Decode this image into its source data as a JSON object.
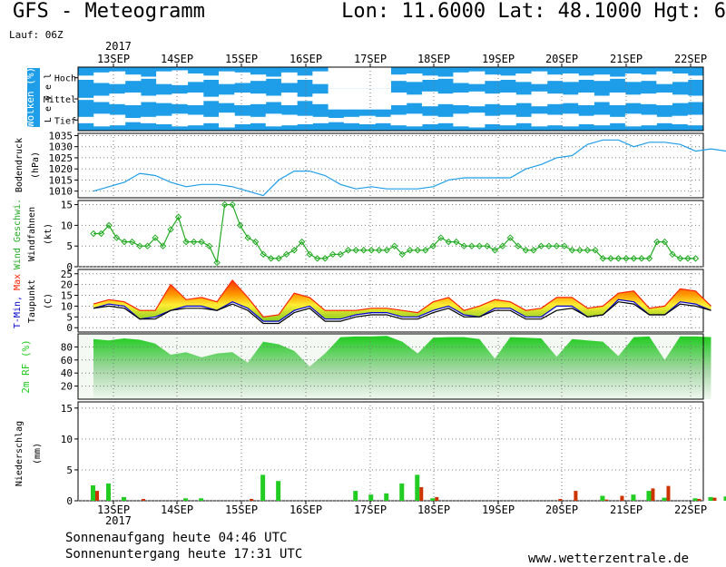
{
  "header": {
    "title": "GFS - Meteogramm",
    "coords": "Lon: 11.6000 Lat: 48.1000 Hgt: 6",
    "run": "Lauf: 06Z",
    "year_top": "2017",
    "year_bottom": "2017"
  },
  "footer": {
    "sunrise": "Sonnenaufgang heute 04:46 UTC",
    "sunset": "Sonnenuntergang heute 17:31 UTC",
    "credit": "www.wetterzentrale.de"
  },
  "colors": {
    "cloud_sky": "#1e9ee8",
    "cloud": "#ffffff",
    "pressure": "#1e9ee8",
    "wind": "#22aa22",
    "humidity": "#22cc22",
    "rain_green": "#22cc22",
    "rain_red": "#cc3300",
    "tmax": "#ff2200",
    "tmin": "#0000cc",
    "dewpoint": "#000000"
  },
  "chart_data": [
    {
      "type": "area",
      "panel": "clouds",
      "ylabel": "Wolken (%)",
      "ylabel2": "L e v e l",
      "levels": [
        "Hoch",
        "Mittel",
        "Tief"
      ],
      "x_ticks": [
        "13SEP",
        "14SEP",
        "15SEP",
        "16SEP",
        "17SEP",
        "18SEP",
        "19SEP",
        "20SEP",
        "21SEP",
        "22SEP"
      ],
      "step_hours": 6,
      "series": [
        {
          "name": "Hoch",
          "values": [
            20,
            50,
            60,
            30,
            10,
            60,
            70,
            40,
            20,
            60,
            50,
            30,
            10,
            50,
            20,
            60,
            100,
            100,
            100,
            100,
            30,
            40,
            20,
            10,
            50,
            60,
            30,
            20,
            40,
            60,
            30,
            40,
            20,
            30,
            10,
            40,
            30,
            60,
            40,
            20
          ]
        },
        {
          "name": "Mittel",
          "values": [
            10,
            30,
            50,
            60,
            30,
            40,
            50,
            60,
            20,
            40,
            60,
            50,
            30,
            60,
            20,
            50,
            100,
            100,
            100,
            100,
            60,
            40,
            70,
            50,
            60,
            70,
            50,
            60,
            40,
            70,
            50,
            40,
            60,
            30,
            60,
            40,
            50,
            60,
            40,
            30
          ]
        },
        {
          "name": "Tief",
          "values": [
            30,
            60,
            50,
            20,
            30,
            40,
            60,
            50,
            30,
            70,
            40,
            30,
            60,
            50,
            40,
            30,
            20,
            30,
            40,
            30,
            50,
            60,
            40,
            30,
            60,
            70,
            40,
            50,
            30,
            60,
            50,
            60,
            40,
            50,
            30,
            60,
            50,
            30,
            40,
            50
          ]
        }
      ]
    },
    {
      "type": "line",
      "panel": "pressure",
      "ylabel": "Bodendruck",
      "unit": "(hPa)",
      "ylim": [
        1007,
        1036
      ],
      "yticks": [
        1010,
        1015,
        1020,
        1025,
        1030,
        1035
      ],
      "x_ticks": [
        "13SEP",
        "14SEP",
        "15SEP",
        "16SEP",
        "17SEP",
        "18SEP",
        "19SEP",
        "20SEP",
        "21SEP",
        "22SEP"
      ],
      "step_hours": 6,
      "values": [
        1010,
        1012,
        1014,
        1018,
        1017,
        1014,
        1012,
        1013,
        1013,
        1012,
        1010,
        1008,
        1015,
        1019,
        1019,
        1017,
        1013,
        1011,
        1012,
        1011,
        1011,
        1011,
        1012,
        1015,
        1016,
        1016,
        1016,
        1016,
        1020,
        1022,
        1025,
        1026,
        1031,
        1033,
        1033,
        1030,
        1032,
        1032,
        1031,
        1028,
        1029,
        1028,
        1025,
        1022,
        1021,
        1023,
        1023
      ]
    },
    {
      "type": "line",
      "panel": "wind",
      "ylabel": "Wind Geschwi.",
      "ylabel2": "Windfahnen",
      "unit": "(kt)",
      "ylim": [
        0,
        16
      ],
      "yticks": [
        0,
        5,
        10,
        15
      ],
      "x_ticks": [
        "13SEP",
        "14SEP",
        "15SEP",
        "16SEP",
        "17SEP",
        "18SEP",
        "19SEP",
        "20SEP",
        "21SEP",
        "22SEP"
      ],
      "step_hours": 3,
      "values": [
        8,
        8,
        10,
        7,
        6,
        6,
        5,
        5,
        7,
        5,
        9,
        12,
        6,
        6,
        6,
        5,
        1,
        15,
        15,
        10,
        7,
        6,
        3,
        2,
        2,
        3,
        4,
        6,
        3,
        2,
        2,
        3,
        3,
        4,
        4,
        4,
        4,
        4,
        4,
        5,
        3,
        4,
        4,
        4,
        5,
        7,
        6,
        6,
        5,
        5,
        5,
        5,
        4,
        5,
        7,
        5,
        4,
        4,
        5,
        5,
        5,
        5,
        4,
        4,
        4,
        4,
        2,
        2,
        2,
        2,
        2,
        2,
        2,
        6,
        6,
        3,
        2,
        2,
        2
      ]
    },
    {
      "type": "area",
      "panel": "temperature",
      "ylabel": "T-Min, Max",
      "ylabel2": "Taupunkt",
      "unit": "(C)",
      "ylim": [
        -2,
        27
      ],
      "yticks": [
        0,
        5,
        10,
        15,
        20,
        25
      ],
      "x_ticks": [
        "13SEP",
        "14SEP",
        "15SEP",
        "16SEP",
        "17SEP",
        "18SEP",
        "19SEP",
        "20SEP",
        "21SEP",
        "22SEP"
      ],
      "step_hours": 6,
      "series": [
        {
          "name": "Max",
          "values": [
            11,
            13,
            12,
            8,
            8,
            20,
            13,
            14,
            12,
            22,
            14,
            5,
            6,
            16,
            14,
            8,
            8,
            8,
            9,
            9,
            8,
            7,
            12,
            14,
            8,
            10,
            13,
            12,
            8,
            9,
            14,
            14,
            9,
            10,
            16,
            17,
            9,
            10,
            18,
            17,
            10
          ]
        },
        {
          "name": "Min",
          "values": [
            9,
            11,
            10,
            4,
            5,
            8,
            10,
            10,
            8,
            12,
            9,
            3,
            3,
            8,
            10,
            4,
            4,
            6,
            7,
            7,
            5,
            5,
            8,
            10,
            6,
            5,
            9,
            9,
            5,
            5,
            10,
            10,
            5,
            6,
            13,
            12,
            6,
            6,
            12,
            11,
            8
          ]
        },
        {
          "name": "Taupunkt",
          "values": [
            9,
            10,
            9,
            4,
            4,
            8,
            9,
            9,
            8,
            11,
            8,
            2,
            2,
            7,
            9,
            3,
            3,
            5,
            6,
            6,
            4,
            4,
            7,
            9,
            5,
            5,
            8,
            8,
            4,
            4,
            8,
            9,
            5,
            6,
            12,
            11,
            6,
            6,
            11,
            10,
            8
          ]
        }
      ]
    },
    {
      "type": "area",
      "panel": "humidity",
      "ylabel": "2m RF (%)",
      "ylim": [
        0,
        100
      ],
      "yticks": [
        20,
        40,
        60,
        80
      ],
      "x_ticks": [
        "13SEP",
        "14SEP",
        "15SEP",
        "16SEP",
        "17SEP",
        "18SEP",
        "19SEP",
        "20SEP",
        "21SEP",
        "22SEP"
      ],
      "step_hours": 6,
      "values": [
        92,
        90,
        93,
        91,
        85,
        68,
        72,
        64,
        70,
        72,
        56,
        88,
        84,
        74,
        50,
        70,
        95,
        96,
        96,
        97,
        88,
        70,
        94,
        95,
        95,
        92,
        62,
        95,
        94,
        93,
        65,
        92,
        90,
        88,
        66,
        95,
        96,
        60,
        96,
        96,
        95
      ]
    },
    {
      "type": "bar",
      "panel": "precipitation",
      "ylabel": "Niederschlag",
      "unit": "(mm)",
      "ylim": [
        0,
        16
      ],
      "yticks": [
        0,
        5,
        10,
        15
      ],
      "x_ticks": [
        "13SEP",
        "14SEP",
        "15SEP",
        "16SEP",
        "17SEP",
        "18SEP",
        "19SEP",
        "20SEP",
        "21SEP",
        "22SEP"
      ],
      "step_hours": 6,
      "series": [
        {
          "name": "green",
          "values": [
            2.5,
            2.8,
            0.6,
            0,
            0,
            0,
            0.4,
            0.4,
            0,
            0,
            0,
            4.2,
            3.2,
            0,
            0,
            0,
            0,
            1.6,
            1,
            1.2,
            2.8,
            4.2,
            0.4,
            0,
            0,
            0,
            0,
            0,
            0,
            0,
            0,
            0,
            0,
            0.8,
            0,
            1,
            1.6,
            0.5,
            0,
            0.4,
            0.6,
            0.7,
            0.3,
            0.4,
            0.8,
            0.8,
            0,
            0
          ]
        },
        {
          "name": "red",
          "values": [
            1.6,
            0,
            0,
            0.3,
            0,
            0,
            0,
            0,
            0,
            0,
            0.3,
            0,
            0,
            0,
            0,
            0,
            0,
            0,
            0,
            0,
            0,
            2.2,
            0.6,
            0,
            0,
            0,
            0,
            0,
            0,
            0,
            0.3,
            1.6,
            0,
            0.2,
            0.8,
            0,
            2,
            2.4,
            0,
            0.3,
            0.5,
            0,
            0.4,
            0,
            0.3,
            0,
            0,
            0
          ]
        }
      ]
    }
  ]
}
